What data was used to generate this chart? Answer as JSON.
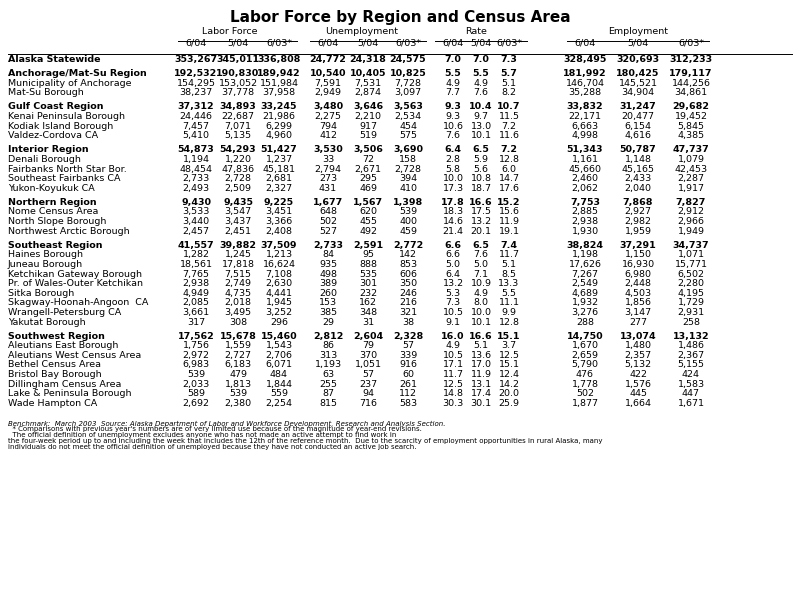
{
  "title": "Labor Force by Region and Census Area",
  "col_groups": [
    "Labor Force",
    "Unemployment",
    "Rate",
    "Employment"
  ],
  "col_headers": [
    "6/04",
    "5/04",
    "6/03*"
  ],
  "rows": [
    [
      "Alaska Statewide",
      "353,267",
      "345,011",
      "336,808",
      "24,772",
      "24,318",
      "24,575",
      "7.0",
      "7.0",
      "7.3",
      "328,495",
      "320,693",
      "312,233"
    ],
    [
      "",
      "",
      "",
      "",
      "",
      "",
      "",
      "",
      "",
      "",
      "",
      "",
      ""
    ],
    [
      "Anchorage/Mat-Su Region",
      "192,532",
      "190,830",
      "189,942",
      "10,540",
      "10,405",
      "10,825",
      "5.5",
      "5.5",
      "5.7",
      "181,992",
      "180,425",
      "179,117"
    ],
    [
      "Municipality of Anchorage",
      "154,295",
      "153,052",
      "151,984",
      "7,591",
      "7,531",
      "7,728",
      "4.9",
      "4.9",
      "5.1",
      "146,704",
      "145,521",
      "144,256"
    ],
    [
      "Mat-Su Borough",
      "38,237",
      "37,778",
      "37,958",
      "2,949",
      "2,874",
      "3,097",
      "7.7",
      "7.6",
      "8.2",
      "35,288",
      "34,904",
      "34,861"
    ],
    [
      "",
      "",
      "",
      "",
      "",
      "",
      "",
      "",
      "",
      "",
      "",
      "",
      ""
    ],
    [
      "Gulf Coast Region",
      "37,312",
      "34,893",
      "33,245",
      "3,480",
      "3,646",
      "3,563",
      "9.3",
      "10.4",
      "10.7",
      "33,832",
      "31,247",
      "29,682"
    ],
    [
      "Kenai Peninsula Borough",
      "24,446",
      "22,687",
      "21,986",
      "2,275",
      "2,210",
      "2,534",
      "9.3",
      "9.7",
      "11.5",
      "22,171",
      "20,477",
      "19,452"
    ],
    [
      "Kodiak Island Borough",
      "7,457",
      "7,071",
      "6,299",
      "794",
      "917",
      "454",
      "10.6",
      "13.0",
      "7.2",
      "6,663",
      "6,154",
      "5,845"
    ],
    [
      "Valdez-Cordova CA",
      "5,410",
      "5,135",
      "4,960",
      "412",
      "519",
      "575",
      "7.6",
      "10.1",
      "11.6",
      "4,998",
      "4,616",
      "4,385"
    ],
    [
      "",
      "",
      "",
      "",
      "",
      "",
      "",
      "",
      "",
      "",
      "",
      "",
      ""
    ],
    [
      "Interior Region",
      "54,873",
      "54,293",
      "51,427",
      "3,530",
      "3,506",
      "3,690",
      "6.4",
      "6.5",
      "7.2",
      "51,343",
      "50,787",
      "47,737"
    ],
    [
      "Denali Borough",
      "1,194",
      "1,220",
      "1,237",
      "33",
      "72",
      "158",
      "2.8",
      "5.9",
      "12.8",
      "1,161",
      "1,148",
      "1,079"
    ],
    [
      "Fairbanks North Star Bor.",
      "48,454",
      "47,836",
      "45,181",
      "2,794",
      "2,671",
      "2,728",
      "5.8",
      "5.6",
      "6.0",
      "45,660",
      "45,165",
      "42,453"
    ],
    [
      "Southeast Fairbanks CA",
      "2,733",
      "2,728",
      "2,681",
      "273",
      "295",
      "394",
      "10.0",
      "10.8",
      "14.7",
      "2,460",
      "2,433",
      "2,287"
    ],
    [
      "Yukon-Koyukuk CA",
      "2,493",
      "2,509",
      "2,327",
      "431",
      "469",
      "410",
      "17.3",
      "18.7",
      "17.6",
      "2,062",
      "2,040",
      "1,917"
    ],
    [
      "",
      "",
      "",
      "",
      "",
      "",
      "",
      "",
      "",
      "",
      "",
      "",
      ""
    ],
    [
      "Northern Region",
      "9,430",
      "9,435",
      "9,225",
      "1,677",
      "1,567",
      "1,398",
      "17.8",
      "16.6",
      "15.2",
      "7,753",
      "7,868",
      "7,827"
    ],
    [
      "Nome Census Area",
      "3,533",
      "3,547",
      "3,451",
      "648",
      "620",
      "539",
      "18.3",
      "17.5",
      "15.6",
      "2,885",
      "2,927",
      "2,912"
    ],
    [
      "North Slope Borough",
      "3,440",
      "3,437",
      "3,366",
      "502",
      "455",
      "400",
      "14.6",
      "13.2",
      "11.9",
      "2,938",
      "2,982",
      "2,966"
    ],
    [
      "Northwest Arctic Borough",
      "2,457",
      "2,451",
      "2,408",
      "527",
      "492",
      "459",
      "21.4",
      "20.1",
      "19.1",
      "1,930",
      "1,959",
      "1,949"
    ],
    [
      "",
      "",
      "",
      "",
      "",
      "",
      "",
      "",
      "",
      "",
      "",
      "",
      ""
    ],
    [
      "Southeast Region",
      "41,557",
      "39,882",
      "37,509",
      "2,733",
      "2,591",
      "2,772",
      "6.6",
      "6.5",
      "7.4",
      "38,824",
      "37,291",
      "34,737"
    ],
    [
      "Haines Borough",
      "1,282",
      "1,245",
      "1,213",
      "84",
      "95",
      "142",
      "6.6",
      "7.6",
      "11.7",
      "1,198",
      "1,150",
      "1,071"
    ],
    [
      "Juneau Borough",
      "18,561",
      "17,818",
      "16,624",
      "935",
      "888",
      "853",
      "5.0",
      "5.0",
      "5.1",
      "17,626",
      "16,930",
      "15,771"
    ],
    [
      "Ketchikan Gateway Borough",
      "7,765",
      "7,515",
      "7,108",
      "498",
      "535",
      "606",
      "6.4",
      "7.1",
      "8.5",
      "7,267",
      "6,980",
      "6,502"
    ],
    [
      "Pr. of Wales-Outer Ketchikan",
      "2,938",
      "2,749",
      "2,630",
      "389",
      "301",
      "350",
      "13.2",
      "10.9",
      "13.3",
      "2,549",
      "2,448",
      "2,280"
    ],
    [
      "Sitka Borough",
      "4,949",
      "4,735",
      "4,441",
      "260",
      "232",
      "246",
      "5.3",
      "4.9",
      "5.5",
      "4,689",
      "4,503",
      "4,195"
    ],
    [
      "Skagway-Hoonah-Angoon  CA",
      "2,085",
      "2,018",
      "1,945",
      "153",
      "162",
      "216",
      "7.3",
      "8.0",
      "11.1",
      "1,932",
      "1,856",
      "1,729"
    ],
    [
      "Wrangell-Petersburg CA",
      "3,661",
      "3,495",
      "3,252",
      "385",
      "348",
      "321",
      "10.5",
      "10.0",
      "9.9",
      "3,276",
      "3,147",
      "2,931"
    ],
    [
      "Yakutat Borough",
      "317",
      "308",
      "296",
      "29",
      "31",
      "38",
      "9.1",
      "10.1",
      "12.8",
      "288",
      "277",
      "258"
    ],
    [
      "",
      "",
      "",
      "",
      "",
      "",
      "",
      "",
      "",
      "",
      "",
      "",
      ""
    ],
    [
      "Southwest Region",
      "17,562",
      "15,678",
      "15,460",
      "2,812",
      "2,604",
      "2,328",
      "16.0",
      "16.6",
      "15.1",
      "14,750",
      "13,074",
      "13,132"
    ],
    [
      "Aleutians East Borough",
      "1,756",
      "1,559",
      "1,543",
      "86",
      "79",
      "57",
      "4.9",
      "5.1",
      "3.7",
      "1,670",
      "1,480",
      "1,486"
    ],
    [
      "Aleutians West Census Area",
      "2,972",
      "2,727",
      "2,706",
      "313",
      "370",
      "339",
      "10.5",
      "13.6",
      "12.5",
      "2,659",
      "2,357",
      "2,367"
    ],
    [
      "Bethel Census Area",
      "6,983",
      "6,183",
      "6,071",
      "1,193",
      "1,051",
      "916",
      "17.1",
      "17.0",
      "15.1",
      "5,790",
      "5,132",
      "5,155"
    ],
    [
      "Bristol Bay Borough",
      "539",
      "479",
      "484",
      "63",
      "57",
      "60",
      "11.7",
      "11.9",
      "12.4",
      "476",
      "422",
      "424"
    ],
    [
      "Dillingham Census Area",
      "2,033",
      "1,813",
      "1,844",
      "255",
      "237",
      "261",
      "12.5",
      "13.1",
      "14.2",
      "1,778",
      "1,576",
      "1,583"
    ],
    [
      "Lake & Peninsula Borough",
      "589",
      "539",
      "559",
      "87",
      "94",
      "112",
      "14.8",
      "17.4",
      "20.0",
      "502",
      "445",
      "447"
    ],
    [
      "Wade Hampton CA",
      "2,692",
      "2,380",
      "2,254",
      "815",
      "716",
      "583",
      "30.3",
      "30.1",
      "25.9",
      "1,877",
      "1,664",
      "1,671"
    ]
  ],
  "region_rows": [
    "Alaska Statewide",
    "Anchorage/Mat-Su Region",
    "Gulf Coast Region",
    "Interior Region",
    "Northern Region",
    "Southeast Region",
    "Southwest Region"
  ],
  "footnote_bold": "Benchmark:  March 2003  Source: Alaska Department of Labor and Workforce Development, Research and Analysis Section.",
  "footnote_normal": "  * Comparisons with previous year's numbers are of very limited use because of the magnitude of year-end revisions.  The official definition of unemployment excludes anyone who has not made an active attempt to find work in the four-week period up to and including the week that includes the 12th of the reference month.  Due to the scarcity of employment opportunities in rural Alaska, many individuals do not meet the official definition of unemployed because they have not conducted an active job search.",
  "background": "#ffffff",
  "text_color": "#000000"
}
